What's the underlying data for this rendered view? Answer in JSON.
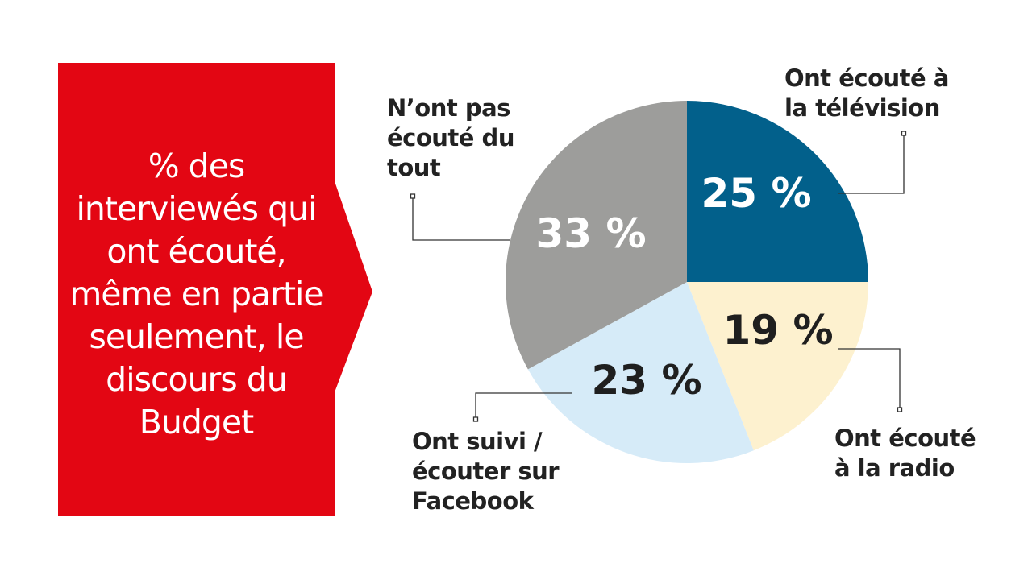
{
  "chart_data": {
    "type": "pie",
    "title": "% des interviewés qui ont écouté, même en partie seulement, le discours du Budget",
    "slices": [
      {
        "label": "Ont écouté à la télévision",
        "value": 25,
        "value_label": "25 %",
        "color": "#02608b",
        "text_color": "#ffffff"
      },
      {
        "label": "Ont écouté à la radio",
        "value": 19,
        "value_label": "19 %",
        "color": "#fdf1cf",
        "text_color": "#1f1f1f"
      },
      {
        "label": "Ont suivi / écouter sur Facebook",
        "value": 23,
        "value_label": "23 %",
        "color": "#d6ebf8",
        "text_color": "#1f1f1f"
      },
      {
        "label": "N’ont pas écouté du tout",
        "value": 33,
        "value_label": "33 %",
        "color": "#9d9d9b",
        "text_color": "#ffffff"
      }
    ],
    "start_angle": "12 o'clock",
    "direction": "clockwise",
    "legend": "none"
  },
  "labels": {
    "tv": "Ont écouté à\nla télévision",
    "radio": "Ont écouté\nà la radio",
    "facebook": "Ont suivi /\nécouter sur\nFacebook",
    "none": "N’ont pas\nécouté du\ntout"
  },
  "title_color": "#e30613"
}
